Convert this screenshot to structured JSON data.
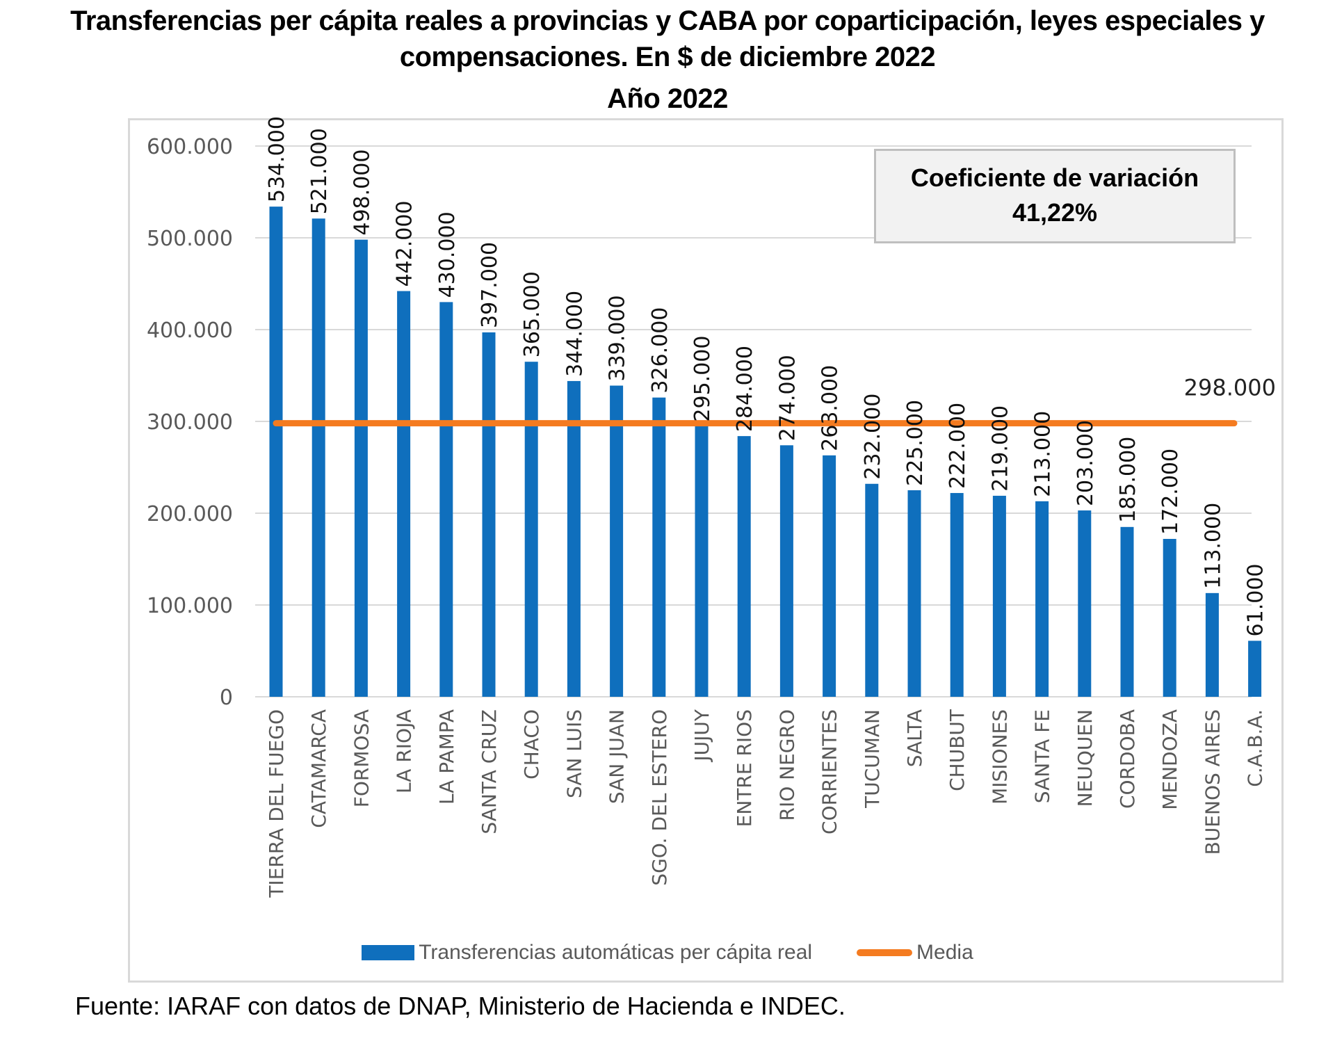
{
  "header": {
    "title_line1": "Transferencias per cápita reales a provincias y CABA por coparticipación, leyes especiales y",
    "title_line2": "compensaciones. En $ de diciembre 2022",
    "title_line3": "Año 2022"
  },
  "annotation": {
    "label": "Coeficiente de variación",
    "value": "41,22%"
  },
  "legend": {
    "bar_label": "Transferencias automáticas per cápita real",
    "line_label": "Media"
  },
  "source": "Fuente: IARAF con datos de DNAP, Ministerio de Hacienda e INDEC.",
  "colors": {
    "bar": "#0f6fbd",
    "mean_line": "#f47b20",
    "grid": "#d9d9d9",
    "axis_text": "#595959"
  },
  "chart_data": {
    "type": "bar",
    "title": "Transferencias per cápita reales a provincias y CABA por coparticipación, leyes especiales y compensaciones. En $ de diciembre 2022 — Año 2022",
    "xlabel": "",
    "ylabel": "",
    "ylim": [
      0,
      600000
    ],
    "yticks": [
      0,
      100000,
      200000,
      300000,
      400000,
      500000,
      600000
    ],
    "ytick_labels": [
      "0",
      "100.000",
      "200.000",
      "300.000",
      "400.000",
      "500.000",
      "600.000"
    ],
    "grid": true,
    "legend_position": "bottom",
    "categories": [
      "TIERRA DEL FUEGO",
      "CATAMARCA",
      "FORMOSA",
      "LA RIOJA",
      "LA PAMPA",
      "SANTA CRUZ",
      "CHACO",
      "SAN LUIS",
      "SAN JUAN",
      "SGO. DEL ESTERO",
      "JUJUY",
      "ENTRE RIOS",
      "RIO NEGRO",
      "CORRIENTES",
      "TUCUMAN",
      "SALTA",
      "CHUBUT",
      "MISIONES",
      "SANTA FE",
      "NEUQUEN",
      "CORDOBA",
      "MENDOZA",
      "BUENOS AIRES",
      "C.A.B.A."
    ],
    "series": [
      {
        "name": "Transferencias automáticas per cápita real",
        "type": "bar",
        "values": [
          534000,
          521000,
          498000,
          442000,
          430000,
          397000,
          365000,
          344000,
          339000,
          326000,
          295000,
          284000,
          274000,
          263000,
          232000,
          225000,
          222000,
          219000,
          213000,
          203000,
          185000,
          172000,
          113000,
          61000
        ],
        "data_labels": [
          "534.000",
          "521.000",
          "498.000",
          "442.000",
          "430.000",
          "397.000",
          "365.000",
          "344.000",
          "339.000",
          "326.000",
          "295.000",
          "284.000",
          "274.000",
          "263.000",
          "232.000",
          "225.000",
          "222.000",
          "219.000",
          "213.000",
          "203.000",
          "185.000",
          "172.000",
          "113.000",
          "61.000"
        ]
      },
      {
        "name": "Media",
        "type": "line",
        "value": 298000,
        "data_label": "298.000"
      }
    ],
    "annotations": [
      "Coeficiente de variación 41,22%"
    ]
  }
}
